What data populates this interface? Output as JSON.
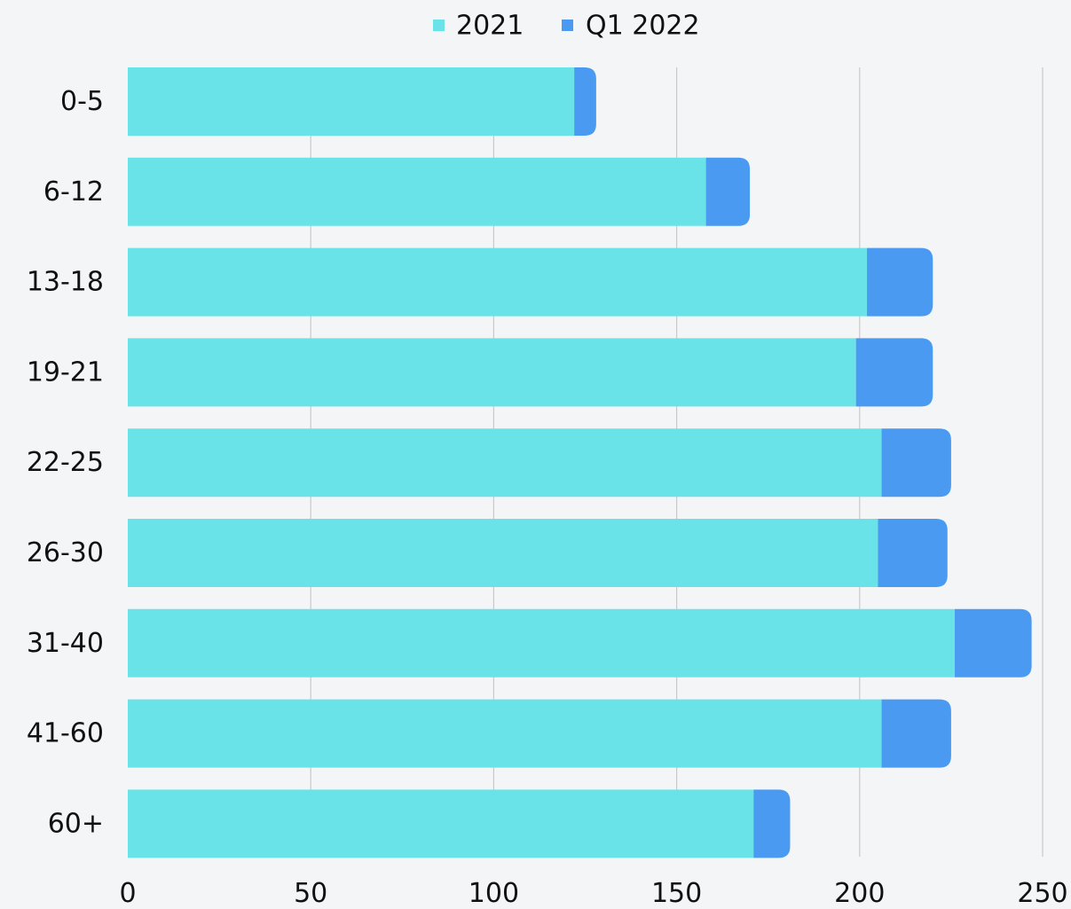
{
  "chart_data": {
    "type": "bar",
    "orientation": "horizontal",
    "stacked": true,
    "categories": [
      "0-5",
      "6-12",
      "13-18",
      "19-21",
      "22-25",
      "26-30",
      "31-40",
      "41-60",
      "60+"
    ],
    "series": [
      {
        "name": "2021",
        "color": "#6ae3e8",
        "values": [
          122,
          158,
          202,
          199,
          206,
          205,
          226,
          206,
          171
        ]
      },
      {
        "name": "Q1 2022",
        "color": "#4a9af2",
        "values": [
          6,
          12,
          18,
          21,
          19,
          19,
          21,
          19,
          10
        ]
      }
    ],
    "x_ticks": [
      "0",
      "50",
      "100",
      "150",
      "200",
      "250"
    ],
    "xlim": [
      0,
      250
    ],
    "grid": "vertical",
    "legend_position": "top-center"
  }
}
